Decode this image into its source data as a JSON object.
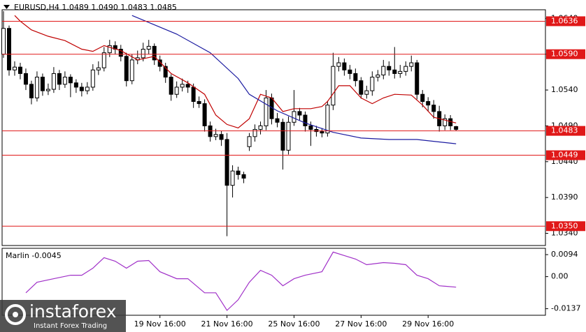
{
  "chart_data": [
    {
      "type": "candlestick",
      "title": "EURUSD,H4  1.0489 1.0490 1.0483 1.0485",
      "xlim": [
        0,
        97
      ],
      "ylim": [
        1.0323,
        1.0652
      ],
      "yticks": [
        {
          "value": 1.064,
          "label": "1.0640"
        },
        {
          "value": 1.059,
          "label": "1.0590"
        },
        {
          "value": 1.054,
          "label": "1.0540"
        },
        {
          "value": 1.049,
          "label": "1.0490"
        },
        {
          "value": 1.044,
          "label": "1.0440"
        },
        {
          "value": 1.039,
          "label": "1.0390"
        },
        {
          "value": 1.034,
          "label": "1.0340"
        }
      ],
      "up_color": "#ffffff",
      "down_color": "#000000",
      "open": [
        1.059,
        1.0626,
        1.0568,
        1.0572,
        1.0563,
        1.0548,
        1.0529,
        1.0558,
        1.0539,
        1.0541,
        1.0563,
        1.0548,
        1.0558,
        1.055,
        1.0544,
        1.0539,
        1.0544,
        1.0568,
        1.0571,
        1.0592,
        1.0602,
        1.0597,
        1.0587,
        1.0553,
        1.0582,
        1.0585,
        1.0597,
        1.0601,
        1.0582,
        1.0573,
        1.0558,
        1.0534,
        1.0544,
        1.0548,
        1.0544,
        1.0524,
        1.0521,
        1.049,
        1.0475,
        1.0478,
        1.0471,
        1.0407,
        1.0427,
        1.0422,
        1.0461,
        1.0475,
        1.0485,
        1.049,
        1.0529,
        1.05,
        1.0495,
        1.0456,
        1.0495,
        1.051,
        1.0505,
        1.049,
        1.0485,
        1.0482,
        1.048,
        1.0519,
        1.0573,
        1.0578,
        1.0568,
        1.0563,
        1.0553,
        1.0534,
        1.0539,
        1.0558,
        1.0561,
        1.0573,
        1.0568,
        1.0563,
        1.0566,
        1.0573,
        1.0578,
        1.0534,
        1.0524,
        1.0519,
        1.051,
        1.049,
        1.05,
        1.0489
      ],
      "high": [
        1.065,
        1.063,
        1.058,
        1.0578,
        1.057,
        1.0553,
        1.0566,
        1.0563,
        1.0549,
        1.0572,
        1.0568,
        1.0566,
        1.0562,
        1.0555,
        1.055,
        1.0551,
        1.0576,
        1.058,
        1.06,
        1.061,
        1.0608,
        1.0603,
        1.0592,
        1.059,
        1.0595,
        1.0606,
        1.061,
        1.0605,
        1.0588,
        1.0578,
        1.0562,
        1.0552,
        1.0556,
        1.0553,
        1.0549,
        1.0531,
        1.0527,
        1.0496,
        1.0486,
        1.0483,
        1.048,
        1.0435,
        1.0433,
        1.0426,
        1.048,
        1.0492,
        1.0496,
        1.054,
        1.0535,
        1.0508,
        1.05,
        1.0503,
        1.054,
        1.0515,
        1.051,
        1.0496,
        1.049,
        1.0487,
        1.0525,
        1.0592,
        1.0586,
        1.0584,
        1.0575,
        1.057,
        1.0558,
        1.0546,
        1.0566,
        1.0568,
        1.0582,
        1.058,
        1.06,
        1.0575,
        1.058,
        1.0588,
        1.0582,
        1.054,
        1.053,
        1.0526,
        1.0518,
        1.0506,
        1.0505,
        1.049
      ],
      "low": [
        1.0585,
        1.056,
        1.056,
        1.0555,
        1.054,
        1.052,
        1.0524,
        1.0532,
        1.0533,
        1.0536,
        1.054,
        1.0543,
        1.053,
        1.0536,
        1.0531,
        1.0534,
        1.0539,
        1.0561,
        1.0566,
        1.0586,
        1.059,
        1.058,
        1.0545,
        1.0548,
        1.0576,
        1.058,
        1.059,
        1.0575,
        1.0566,
        1.055,
        1.0525,
        1.0529,
        1.0538,
        1.0536,
        1.0515,
        1.0515,
        1.0482,
        1.0468,
        1.047,
        1.0462,
        1.0336,
        1.039,
        1.0415,
        1.041,
        1.0455,
        1.0468,
        1.0478,
        1.0484,
        1.0492,
        1.0488,
        1.0429,
        1.045,
        1.049,
        1.0498,
        1.0482,
        1.0462,
        1.0475,
        1.0474,
        1.0475,
        1.0512,
        1.0566,
        1.056,
        1.0555,
        1.0545,
        1.0528,
        1.0528,
        1.0532,
        1.0552,
        1.0555,
        1.056,
        1.0556,
        1.0557,
        1.056,
        1.0566,
        1.0527,
        1.0516,
        1.051,
        1.05,
        1.0482,
        1.0484,
        1.0484,
        1.0483
      ],
      "close": [
        1.0626,
        1.0568,
        1.0572,
        1.0563,
        1.0548,
        1.0529,
        1.0558,
        1.0539,
        1.0541,
        1.0563,
        1.0548,
        1.0558,
        1.055,
        1.0544,
        1.0539,
        1.0544,
        1.0568,
        1.0571,
        1.0592,
        1.0602,
        1.0597,
        1.0587,
        1.0553,
        1.0582,
        1.0585,
        1.0597,
        1.0601,
        1.0582,
        1.0573,
        1.0558,
        1.0534,
        1.0544,
        1.0548,
        1.0544,
        1.0524,
        1.0521,
        1.049,
        1.0475,
        1.0478,
        1.0471,
        1.0407,
        1.0427,
        1.0422,
        1.0417,
        1.0475,
        1.0485,
        1.049,
        1.0529,
        1.05,
        1.0495,
        1.0456,
        1.0495,
        1.051,
        1.0505,
        1.049,
        1.0485,
        1.0482,
        1.048,
        1.0519,
        1.0573,
        1.0578,
        1.0568,
        1.0563,
        1.0553,
        1.0534,
        1.0539,
        1.0558,
        1.0561,
        1.0573,
        1.0568,
        1.0563,
        1.0566,
        1.0573,
        1.0578,
        1.0534,
        1.0524,
        1.0519,
        1.051,
        1.049,
        1.05,
        1.049,
        1.0485
      ],
      "series": [
        {
          "color": "#c00000",
          "x": [
            2,
            3,
            5,
            8,
            11,
            14,
            16,
            18,
            21,
            24,
            27,
            30,
            33,
            36,
            38,
            40,
            42,
            44,
            46,
            48,
            50,
            52,
            55,
            57,
            58,
            60,
            62,
            64,
            66,
            68,
            70,
            73,
            75,
            77,
            79,
            81
          ],
          "values": [
            1.0644,
            1.0636,
            1.0624,
            1.0615,
            1.0609,
            1.0597,
            1.0594,
            1.0602,
            1.0595,
            1.0582,
            1.0587,
            1.0563,
            1.055,
            1.0534,
            1.0505,
            1.0492,
            1.0487,
            1.05,
            1.0534,
            1.0529,
            1.051,
            1.0514,
            1.0514,
            1.0517,
            1.0524,
            1.0546,
            1.0546,
            1.0529,
            1.0521,
            1.0529,
            1.0534,
            1.0533,
            1.0519,
            1.0502,
            1.0498,
            1.0494
          ]
        },
        {
          "color": "#1a1aa0",
          "x": [
            23,
            31,
            37,
            42,
            44,
            49,
            54,
            59,
            64,
            69,
            74,
            81
          ],
          "values": [
            1.0644,
            1.0618,
            1.0592,
            1.0556,
            1.0534,
            1.0511,
            1.0494,
            1.0481,
            1.0473,
            1.0471,
            1.0471,
            1.0465
          ]
        }
      ],
      "levels": [
        1.0636,
        {
          "value": 1.059,
          "label": "1.0590"
        },
        1.0483,
        1.0449,
        {
          "value": 1.035,
          "label": "1.0350"
        }
      ],
      "level_color": "#e01818"
    },
    {
      "type": "line",
      "title": "Marlin -0.0045",
      "xlim": [
        0,
        97
      ],
      "ylim": [
        -0.0165,
        0.0121
      ],
      "yticks": [
        0.0094,
        {
          "value": 0,
          "label": "0.00"
        },
        -0.0137
      ],
      "xticks": [
        {
          "value": 28,
          "label": "19 Nov 16:00"
        },
        {
          "value": 40,
          "label": "21 Nov 16:00"
        },
        {
          "value": 52,
          "label": "25 Nov 16:00"
        },
        {
          "value": 64,
          "label": "27 Nov 16:00"
        },
        {
          "value": 76,
          "label": "29 Nov 16:00"
        }
      ],
      "series": [
        {
          "color": "#a030c8",
          "x": [
            4,
            6,
            9,
            12,
            14,
            16,
            18,
            20,
            22,
            24,
            26,
            28,
            31,
            33,
            36,
            38,
            40,
            42,
            44,
            46,
            48,
            50,
            52,
            54,
            57,
            59,
            61,
            63,
            65,
            68,
            70,
            72,
            74,
            76,
            78,
            81
          ],
          "values": [
            -0.0069,
            -0.0024,
            -0.0009,
            0.0006,
            0.0006,
            0.0036,
            0.0081,
            0.0066,
            0.0036,
            0.0066,
            0.0069,
            0.0021,
            -0.0009,
            -0.0009,
            -0.0069,
            -0.0069,
            -0.0144,
            -0.0099,
            -0.0024,
            0.0027,
            0.0006,
            -0.0039,
            -0.0009,
            0.0006,
            0.0021,
            0.0105,
            0.009,
            0.0075,
            0.0051,
            0.006,
            0.0057,
            0.0051,
            0.0006,
            -0.0009,
            -0.0039,
            -0.0045
          ]
        }
      ]
    }
  ],
  "watermark": {
    "name": "instaforex",
    "tagline": "Instant Forex Trading"
  }
}
